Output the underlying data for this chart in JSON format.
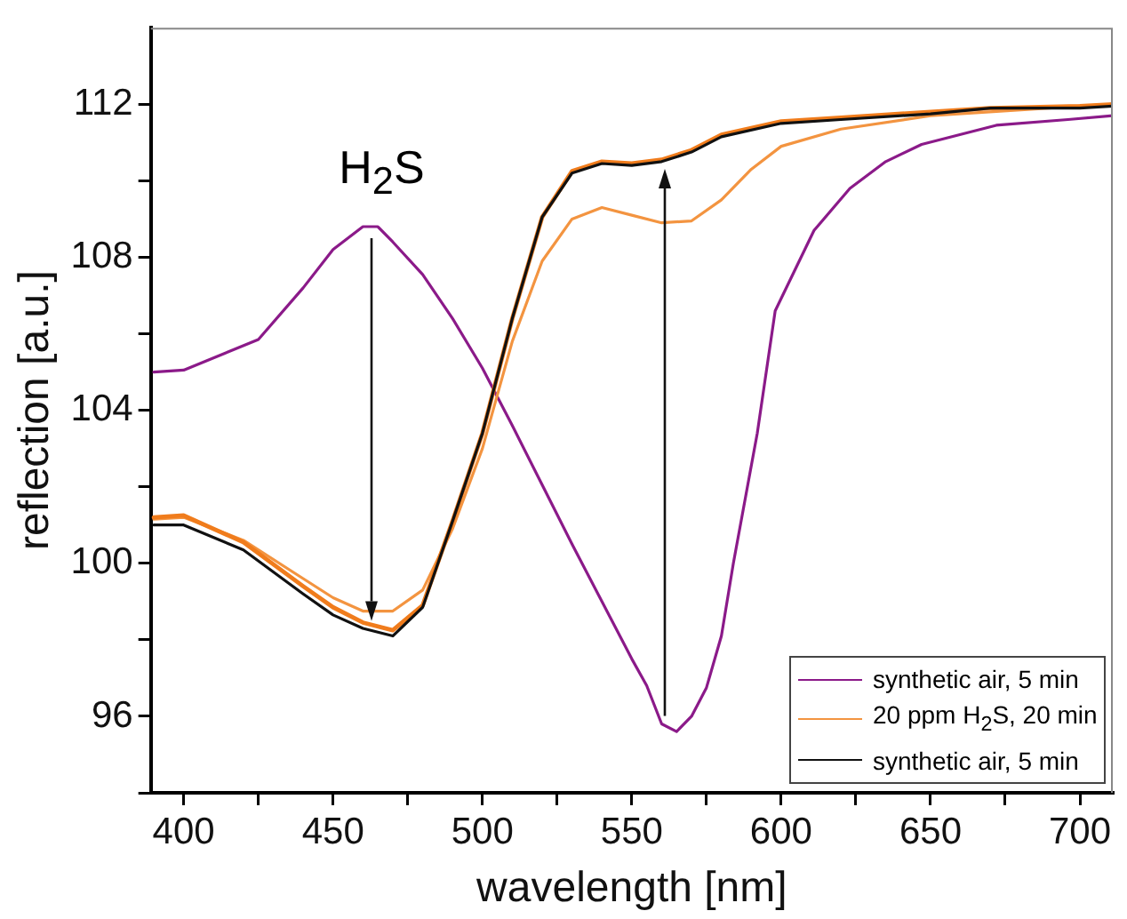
{
  "chart_data": {
    "type": "line",
    "xlabel": "wavelength [nm]",
    "ylabel": "reflection [a.u.]",
    "xlim": [
      389,
      711
    ],
    "xticks": [
      400,
      {
        "value": 425,
        "label": null
      },
      450,
      {
        "value": 475,
        "label": null
      },
      500,
      {
        "value": 525,
        "label": null
      },
      550,
      {
        "value": 575,
        "label": null
      },
      600,
      {
        "value": 625,
        "label": null
      },
      650,
      {
        "value": 675,
        "label": null
      },
      700
    ],
    "ylim": [
      94,
      114
    ],
    "yticks": [
      {
        "value": 94,
        "label": null
      },
      96,
      {
        "value": 98,
        "label": null
      },
      100,
      {
        "value": 102,
        "label": null
      },
      104,
      {
        "value": 106,
        "label": null
      },
      108,
      {
        "value": 110,
        "label": null
      },
      112
    ],
    "grid": false,
    "legend": "bottom right",
    "marker": "none",
    "line_style": "solid",
    "annotations": [
      "H$_{2}$S"
    ],
    "series": [
      {
        "name": "synthetic air, 5 min",
        "color": "#8b1a89",
        "x": [
          390,
          400,
          425,
          440,
          450,
          460,
          465,
          470,
          480,
          490,
          500,
          510,
          520,
          530,
          540,
          550,
          555,
          560,
          565,
          570,
          575,
          580,
          584,
          592,
          598,
          611,
          623,
          635,
          647,
          672,
          696,
          711
        ],
        "values": [
          105.0,
          105.05,
          105.85,
          107.2,
          108.2,
          108.8,
          108.8,
          108.4,
          107.55,
          106.4,
          105.1,
          103.6,
          102.05,
          100.5,
          99.0,
          97.5,
          96.8,
          95.8,
          95.6,
          96.0,
          96.75,
          98.1,
          100.0,
          103.4,
          106.6,
          108.7,
          109.8,
          110.5,
          110.95,
          111.45,
          111.6,
          111.7
        ]
      },
      {
        "name": "20 ppm H$_{2}$S, 20 min",
        "color": "#f39440",
        "x": [
          390,
          400,
          420,
          440,
          450,
          460,
          470,
          480,
          490,
          500,
          510,
          520,
          530,
          540,
          550,
          560,
          570,
          580,
          590,
          600,
          620,
          650,
          700,
          711
        ],
        "values": [
          101.15,
          101.2,
          100.6,
          99.6,
          99.1,
          98.75,
          98.75,
          99.3,
          100.9,
          103.0,
          105.8,
          107.9,
          109.0,
          109.3,
          109.1,
          108.9,
          108.95,
          109.5,
          110.3,
          110.9,
          111.35,
          111.7,
          111.95,
          112.0
        ]
      },
      {
        "color": "#f07c1c",
        "x": [
          390,
          400,
          420,
          440,
          450,
          460,
          470,
          480,
          490,
          500,
          510,
          520,
          530,
          540,
          550,
          560,
          570,
          580,
          600,
          620,
          650,
          670,
          700,
          711
        ],
        "values": [
          101.2,
          101.25,
          100.55,
          99.4,
          98.85,
          98.45,
          98.25,
          98.9,
          101.1,
          103.4,
          106.4,
          109.05,
          110.25,
          110.5,
          110.45,
          110.55,
          110.8,
          111.2,
          111.55,
          111.65,
          111.8,
          111.9,
          111.95,
          112.0
        ]
      },
      {
        "name": "synthetic air, 5 min",
        "color": "#111111",
        "x": [
          390,
          400,
          420,
          440,
          450,
          460,
          470,
          480,
          490,
          500,
          510,
          520,
          530,
          540,
          550,
          560,
          570,
          580,
          600,
          620,
          650,
          670,
          700,
          711
        ],
        "values": [
          101.0,
          101.0,
          100.35,
          99.2,
          98.65,
          98.3,
          98.1,
          98.85,
          101.1,
          103.4,
          106.4,
          109.05,
          110.2,
          110.45,
          110.4,
          110.5,
          110.75,
          111.15,
          111.5,
          111.6,
          111.75,
          111.9,
          111.9,
          111.95
        ]
      }
    ]
  }
}
